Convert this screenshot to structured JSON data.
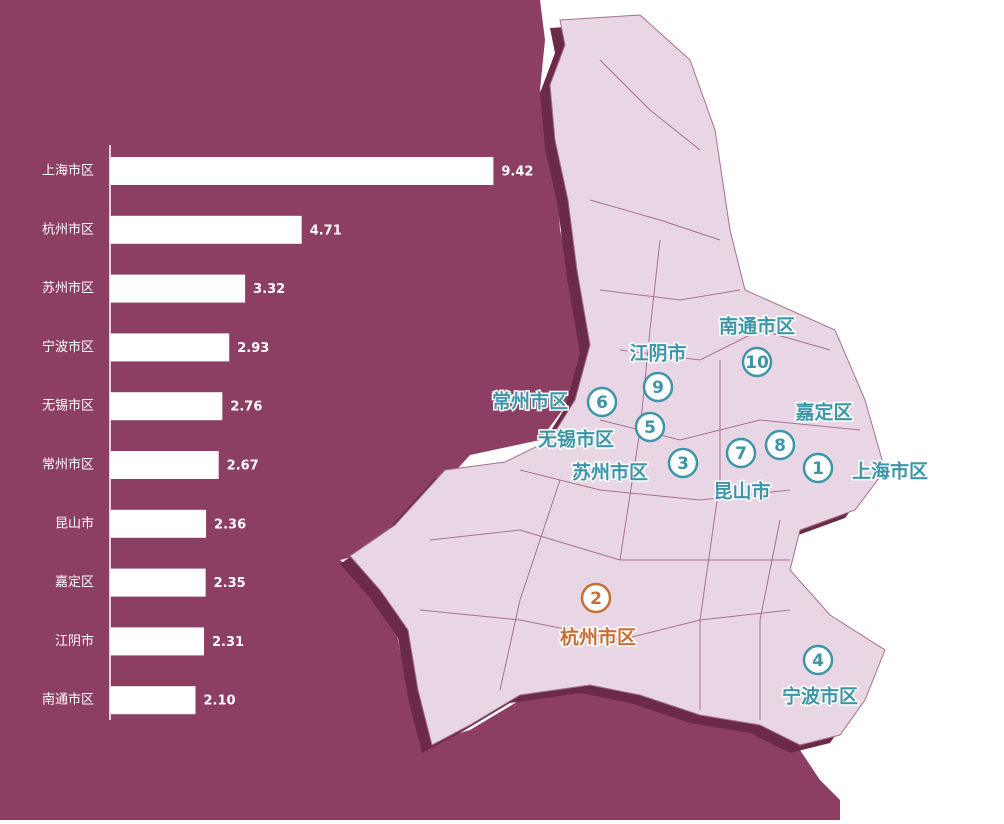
{
  "chart_data": {
    "type": "bar",
    "orientation": "horizontal",
    "categories": [
      "上海市区",
      "杭州市区",
      "苏州市区",
      "宁波市区",
      "无锡市区",
      "常州市区",
      "昆山市",
      "嘉定区",
      "江阴市",
      "南通市区"
    ],
    "values": [
      9.42,
      4.71,
      3.32,
      2.93,
      2.76,
      2.67,
      2.36,
      2.35,
      2.31,
      2.1
    ],
    "value_labels": [
      "9.42",
      "4.71",
      "3.32",
      "2.93",
      "2.76",
      "2.67",
      "2.36",
      "2.35",
      "2.31",
      "2.10"
    ],
    "color": "#ffffff",
    "xlim": [
      0,
      10
    ],
    "map_labels": [
      {
        "rank": 1,
        "name": "上海市区"
      },
      {
        "rank": 2,
        "name": "杭州市区"
      },
      {
        "rank": 3,
        "name": "苏州市区"
      },
      {
        "rank": 4,
        "name": "宁波市区"
      },
      {
        "rank": 5,
        "name": "无锡市区"
      },
      {
        "rank": 6,
        "name": "常州市区"
      },
      {
        "rank": 7,
        "name": "昆山市"
      },
      {
        "rank": 8,
        "name": "嘉定区"
      },
      {
        "rank": 9,
        "name": "江阴市"
      },
      {
        "rank": 10,
        "name": "南通市区"
      }
    ]
  }
}
